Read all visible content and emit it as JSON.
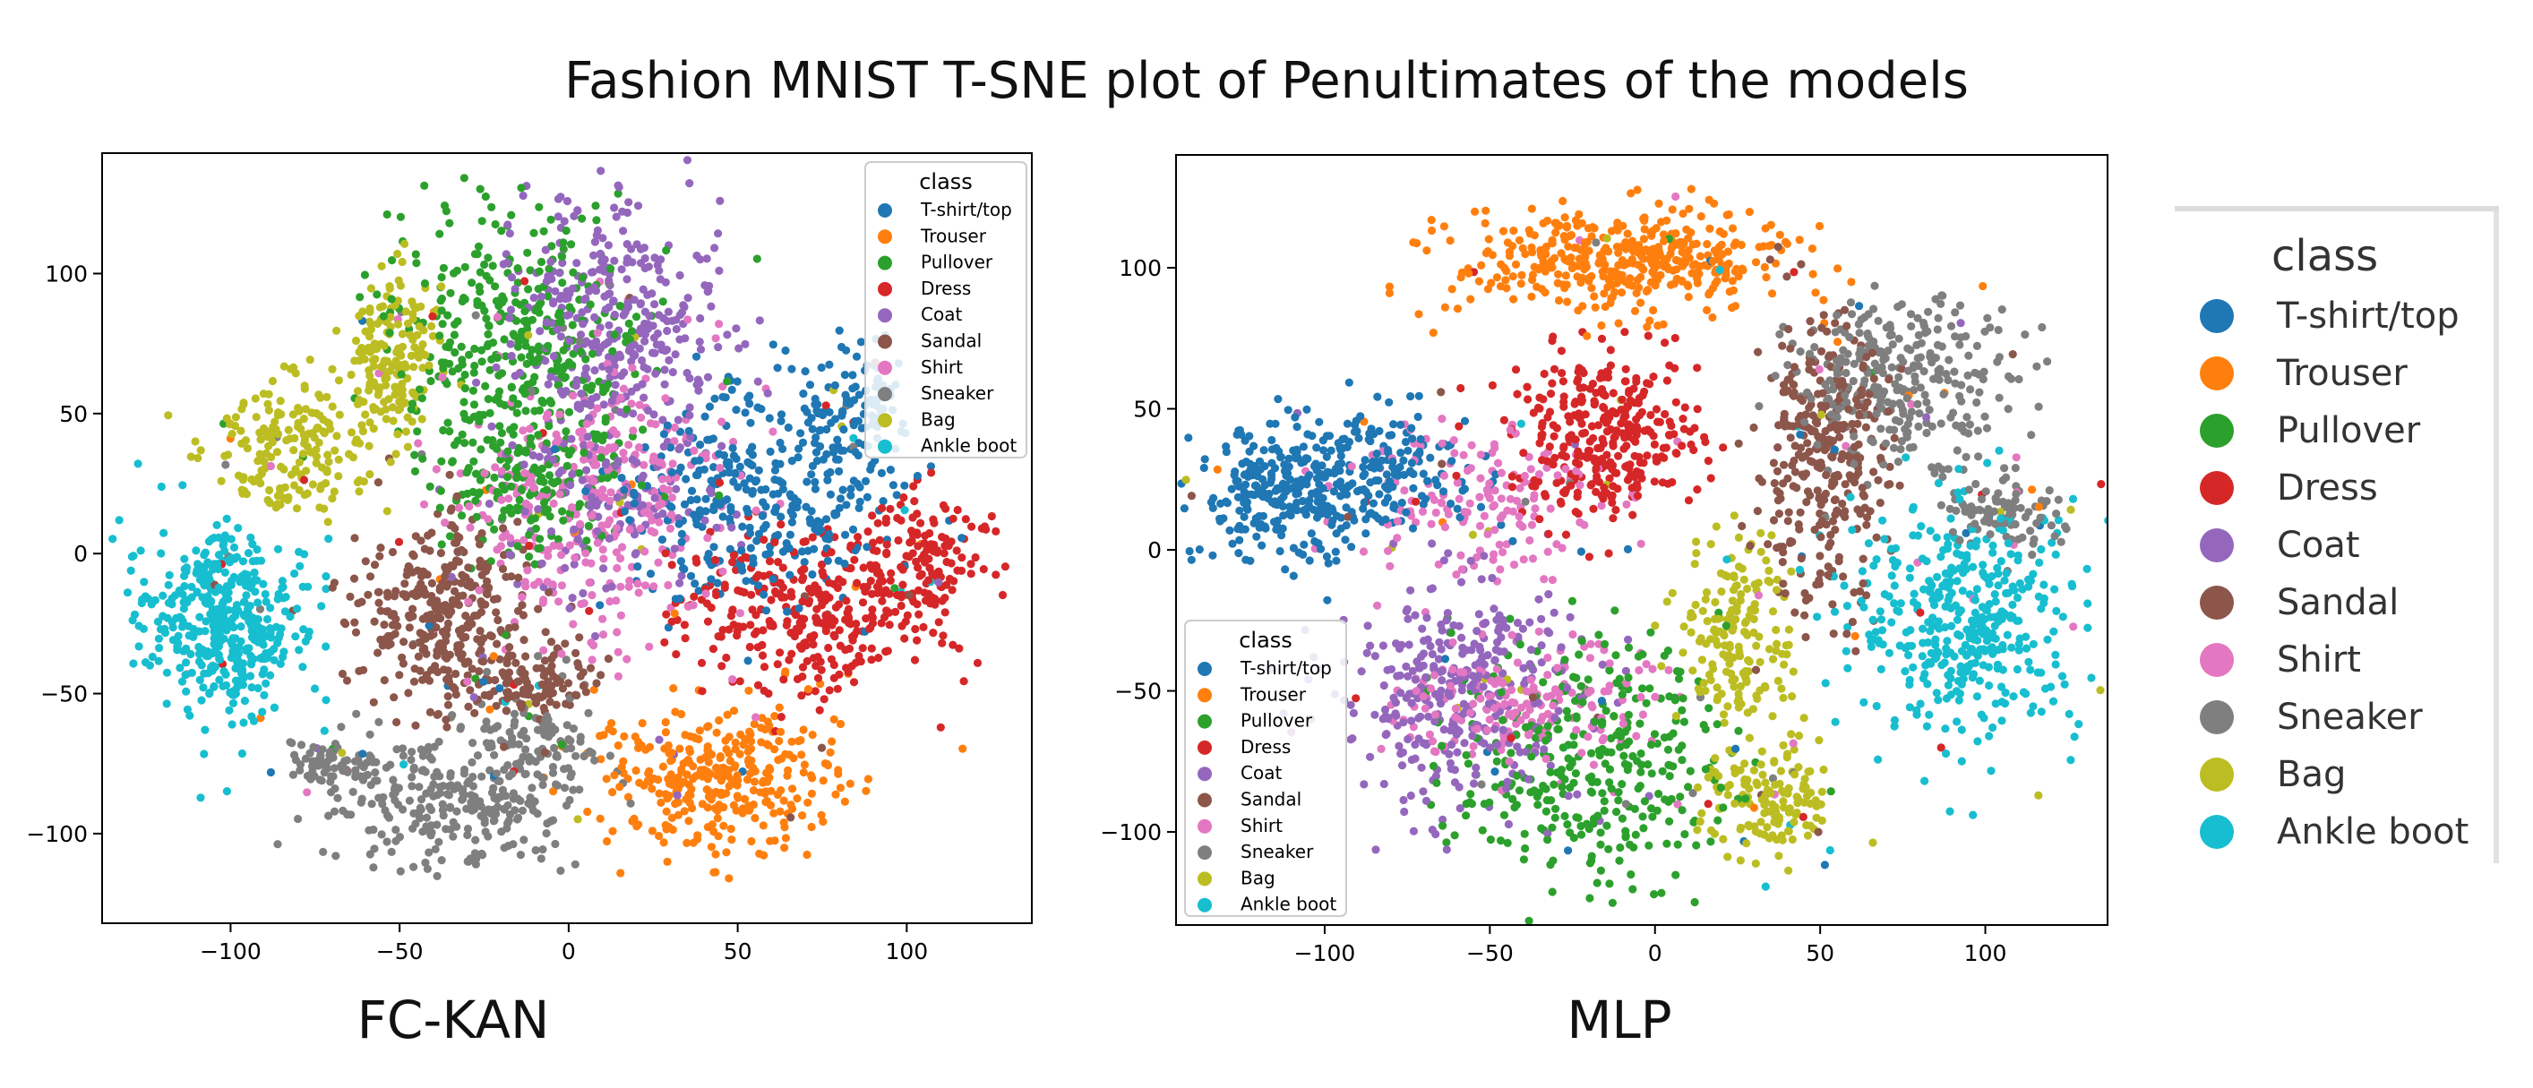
{
  "figure": {
    "title": "Fashion MNIST T-SNE plot of Penultimates of the models",
    "panel_labels": [
      "FC-KAN",
      "MLP"
    ]
  },
  "legend_title": "class",
  "classes": [
    {
      "name": "T-shirt/top",
      "color": "#1f77b4"
    },
    {
      "name": "Trouser",
      "color": "#ff7f0e"
    },
    {
      "name": "Pullover",
      "color": "#2ca02c"
    },
    {
      "name": "Dress",
      "color": "#d62728"
    },
    {
      "name": "Coat",
      "color": "#9467bd"
    },
    {
      "name": "Sandal",
      "color": "#8c564b"
    },
    {
      "name": "Shirt",
      "color": "#e377c2"
    },
    {
      "name": "Sneaker",
      "color": "#7f7f7f"
    },
    {
      "name": "Bag",
      "color": "#bcbd22"
    },
    {
      "name": "Ankle boot",
      "color": "#17becf"
    }
  ],
  "chart_data": [
    {
      "type": "scatter",
      "title": "FC-KAN",
      "xlabel": "",
      "ylabel": "",
      "xlim": [
        -138,
        137
      ],
      "ylim": [
        -132,
        143
      ],
      "xticks": [
        -100,
        -50,
        0,
        50,
        100
      ],
      "yticks": [
        -100,
        -50,
        0,
        50,
        100
      ],
      "legend_position": "upper-right",
      "clusters": [
        {
          "class": "Ankle boot",
          "center": [
            -102,
            -25
          ],
          "spread": [
            14,
            19
          ],
          "count": 420
        },
        {
          "class": "Bag",
          "center": [
            -82,
            40
          ],
          "spread": [
            13,
            14
          ],
          "count": 190
        },
        {
          "class": "Bag",
          "center": [
            -52,
            70
          ],
          "spread": [
            9,
            18
          ],
          "count": 170
        },
        {
          "class": "Sandal",
          "center": [
            -38,
            -20
          ],
          "spread": [
            14,
            19
          ],
          "count": 300
        },
        {
          "class": "Sandal",
          "center": [
            -15,
            -45
          ],
          "spread": [
            14,
            9
          ],
          "count": 130
        },
        {
          "class": "Sneaker",
          "center": [
            -35,
            -90
          ],
          "spread": [
            20,
            14
          ],
          "count": 240
        },
        {
          "class": "Sneaker",
          "center": [
            -10,
            -70
          ],
          "spread": [
            11,
            13
          ],
          "count": 110
        },
        {
          "class": "Sneaker",
          "center": [
            -68,
            -75
          ],
          "spread": [
            10,
            6
          ],
          "count": 70
        },
        {
          "class": "Trouser",
          "center": [
            45,
            -80
          ],
          "spread": [
            22,
            15
          ],
          "count": 340
        },
        {
          "class": "Pullover",
          "center": [
            -15,
            75
          ],
          "spread": [
            22,
            28
          ],
          "count": 360
        },
        {
          "class": "Pullover",
          "center": [
            -12,
            25
          ],
          "spread": [
            17,
            15
          ],
          "count": 160
        },
        {
          "class": "Coat",
          "center": [
            15,
            85
          ],
          "spread": [
            18,
            24
          ],
          "count": 330
        },
        {
          "class": "Coat",
          "center": [
            10,
            20
          ],
          "spread": [
            20,
            20
          ],
          "count": 140
        },
        {
          "class": "Shirt",
          "center": [
            5,
            20
          ],
          "spread": [
            24,
            30
          ],
          "count": 330
        },
        {
          "class": "T-shirt/top",
          "center": [
            55,
            20
          ],
          "spread": [
            23,
            22
          ],
          "count": 320
        },
        {
          "class": "T-shirt/top",
          "center": [
            85,
            50
          ],
          "spread": [
            9,
            13
          ],
          "count": 110
        },
        {
          "class": "Dress",
          "center": [
            72,
            -20
          ],
          "spread": [
            24,
            17
          ],
          "count": 330
        },
        {
          "class": "Dress",
          "center": [
            105,
            0
          ],
          "spread": [
            10,
            13
          ],
          "count": 110
        }
      ]
    },
    {
      "type": "scatter",
      "title": "MLP",
      "xlabel": "",
      "ylabel": "",
      "xlim": [
        -145,
        137
      ],
      "ylim": [
        -133,
        140
      ],
      "xticks": [
        -100,
        -50,
        0,
        50,
        100
      ],
      "yticks": [
        -100,
        -50,
        0,
        50,
        100
      ],
      "legend_position": "lower-left",
      "clusters": [
        {
          "class": "Trouser",
          "center": [
            -10,
            102
          ],
          "spread": [
            30,
            11
          ],
          "count": 420
        },
        {
          "class": "Sneaker",
          "center": [
            75,
            60
          ],
          "spread": [
            20,
            16
          ],
          "count": 290
        },
        {
          "class": "Sneaker",
          "center": [
            105,
            15
          ],
          "spread": [
            10,
            9
          ],
          "count": 90
        },
        {
          "class": "Sandal",
          "center": [
            50,
            30
          ],
          "spread": [
            12,
            30
          ],
          "count": 320
        },
        {
          "class": "Ankle boot",
          "center": [
            95,
            -25
          ],
          "spread": [
            20,
            24
          ],
          "count": 400
        },
        {
          "class": "T-shirt/top",
          "center": [
            -110,
            20
          ],
          "spread": [
            17,
            14
          ],
          "count": 320
        },
        {
          "class": "T-shirt/top",
          "center": [
            -75,
            30
          ],
          "spread": [
            14,
            12
          ],
          "count": 110
        },
        {
          "class": "Dress",
          "center": [
            -15,
            40
          ],
          "spread": [
            17,
            17
          ],
          "count": 330
        },
        {
          "class": "Shirt",
          "center": [
            -55,
            20
          ],
          "spread": [
            22,
            18
          ],
          "count": 150
        },
        {
          "class": "Shirt",
          "center": [
            -40,
            -55
          ],
          "spread": [
            22,
            13
          ],
          "count": 180
        },
        {
          "class": "Coat",
          "center": [
            -60,
            -50
          ],
          "spread": [
            22,
            24
          ],
          "count": 340
        },
        {
          "class": "Pullover",
          "center": [
            -20,
            -75
          ],
          "spread": [
            24,
            26
          ],
          "count": 330
        },
        {
          "class": "Bag",
          "center": [
            25,
            -30
          ],
          "spread": [
            10,
            20
          ],
          "count": 180
        },
        {
          "class": "Bag",
          "center": [
            35,
            -90
          ],
          "spread": [
            12,
            12
          ],
          "count": 140
        }
      ]
    }
  ]
}
